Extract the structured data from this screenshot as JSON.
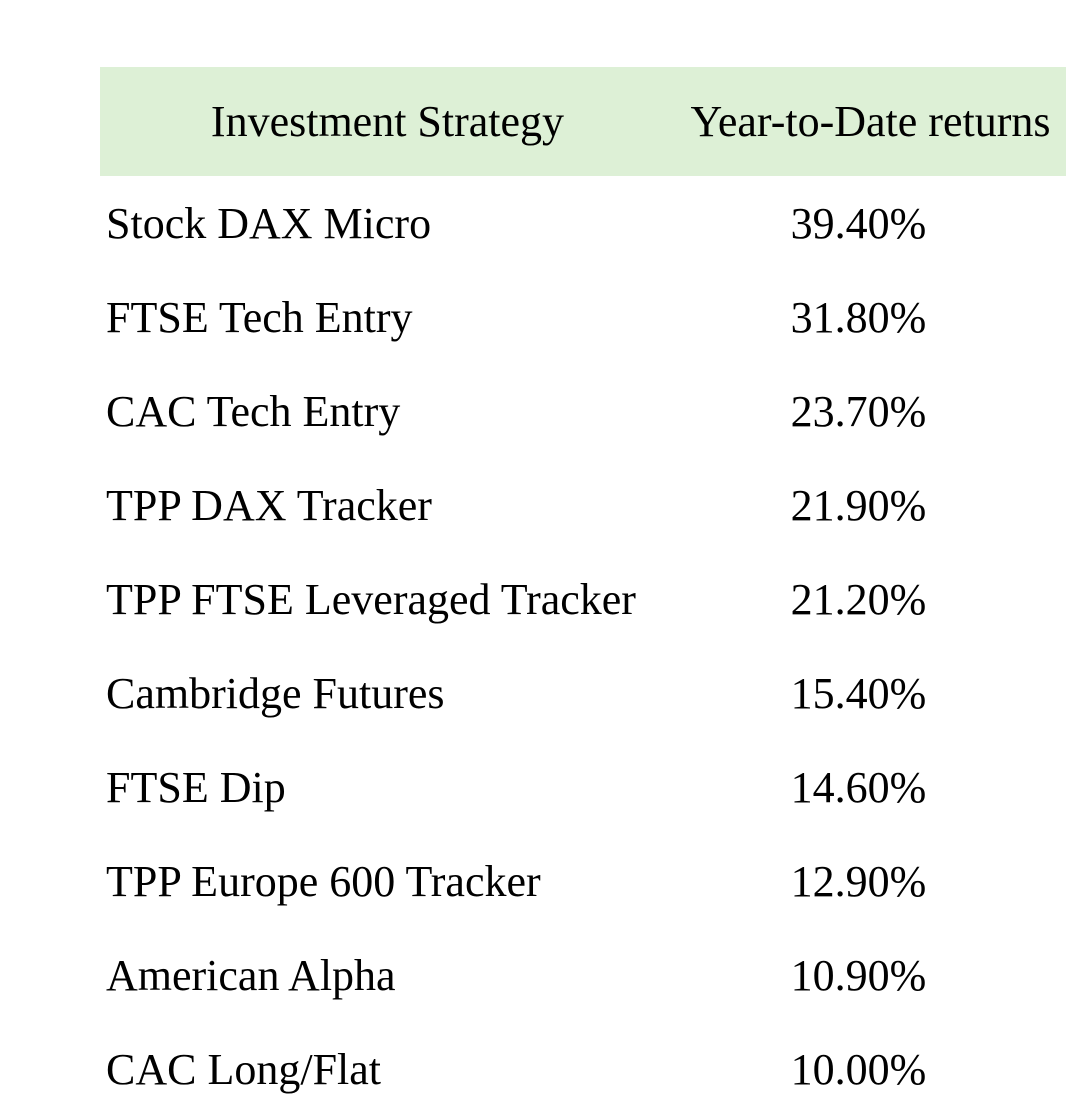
{
  "colors": {
    "header_background": "#ddf0d6",
    "text": "#000000",
    "page_background": "#ffffff"
  },
  "table": {
    "headers": {
      "strategy": "Investment Strategy",
      "returns": "Year-to-Date returns"
    },
    "rows": [
      {
        "strategy": "Stock DAX Micro",
        "returns": "39.40%"
      },
      {
        "strategy": "FTSE Tech Entry",
        "returns": "31.80%"
      },
      {
        "strategy": "CAC Tech Entry",
        "returns": "23.70%"
      },
      {
        "strategy": "TPP DAX Tracker",
        "returns": "21.90%"
      },
      {
        "strategy": "TPP FTSE Leveraged Tracker",
        "returns": "21.20%"
      },
      {
        "strategy": "Cambridge Futures",
        "returns": "15.40%"
      },
      {
        "strategy": "FTSE Dip",
        "returns": "14.60%"
      },
      {
        "strategy": "TPP Europe 600 Tracker",
        "returns": "12.90%"
      },
      {
        "strategy": "American Alpha",
        "returns": "10.90%"
      },
      {
        "strategy": "CAC Long/Flat",
        "returns": "10.00%"
      }
    ]
  }
}
